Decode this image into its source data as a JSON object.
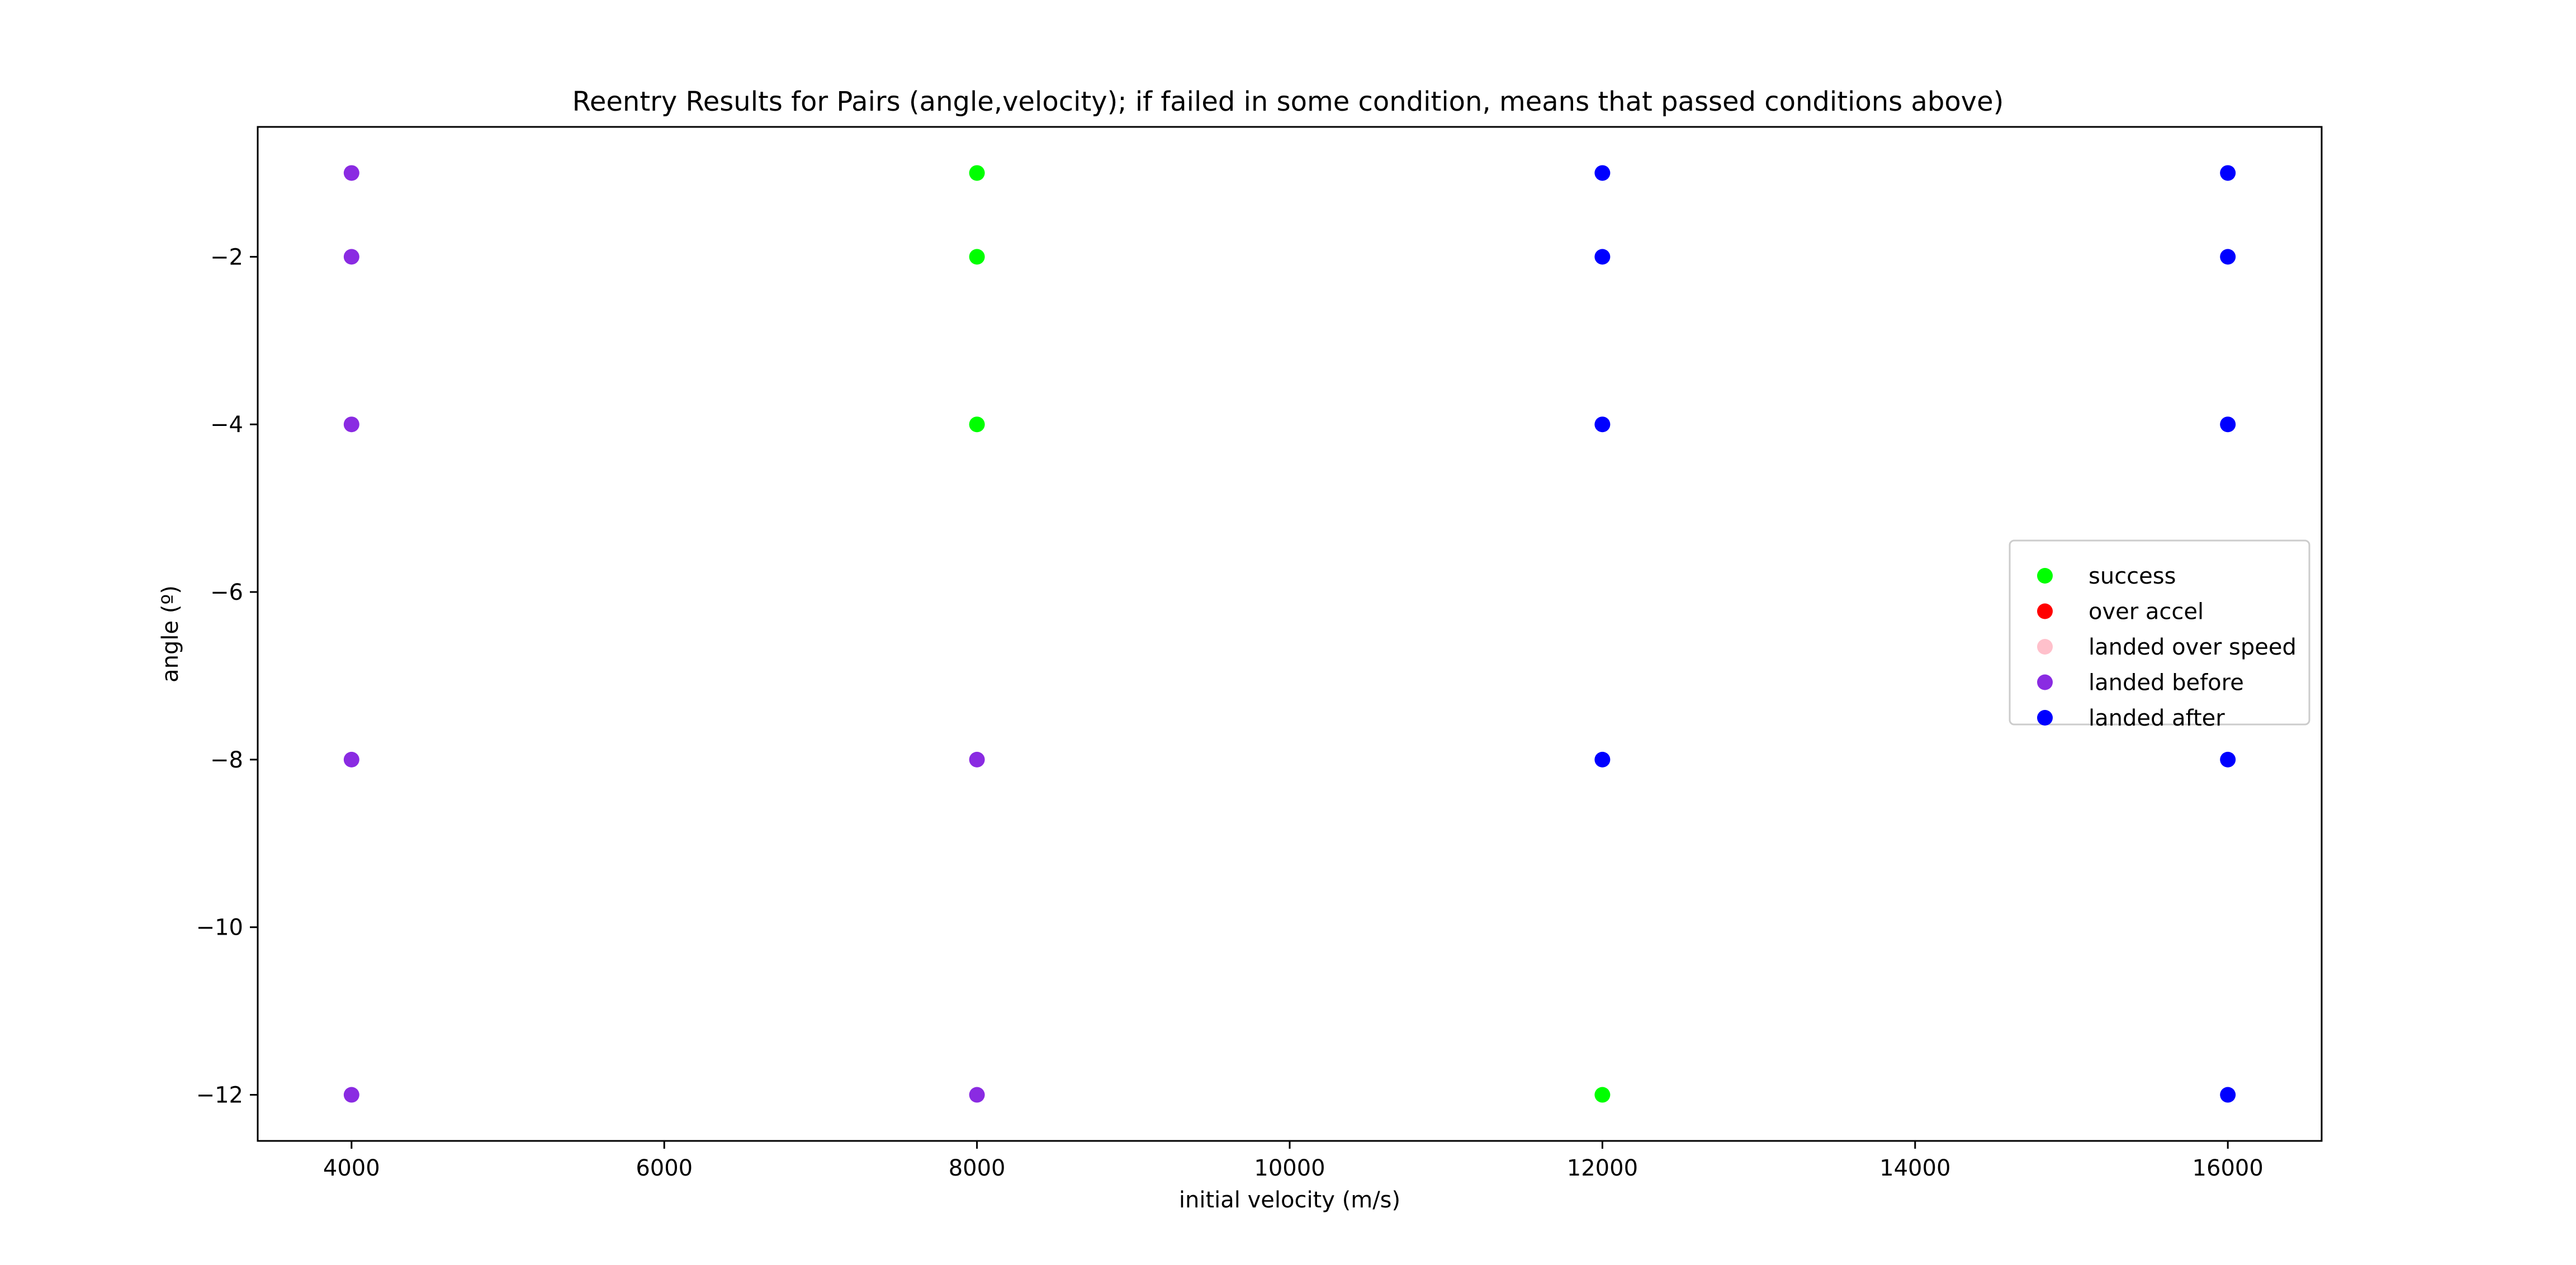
{
  "chart_data": {
    "type": "scatter",
    "title": "Reentry Results for Pairs (angle,velocity); if failed in some condition, means that passed conditions above)",
    "xlabel": "initial velocity (m/s)",
    "ylabel": "angle (º)",
    "xlim": [
      3400,
      16600
    ],
    "ylim": [
      -12.55,
      -0.45
    ],
    "xticks": [
      4000,
      6000,
      8000,
      10000,
      12000,
      14000,
      16000
    ],
    "yticks": [
      -2,
      -4,
      -6,
      -8,
      -10,
      -12
    ],
    "grid": false,
    "legend_position": "center-right",
    "series": [
      {
        "name": "success",
        "color": "#00ff00",
        "points": [
          {
            "x": 8000,
            "y": -1
          },
          {
            "x": 8000,
            "y": -2
          },
          {
            "x": 8000,
            "y": -4
          },
          {
            "x": 12000,
            "y": -12
          }
        ]
      },
      {
        "name": "over accel",
        "color": "#ff0000",
        "points": []
      },
      {
        "name": "landed over speed",
        "color": "#ffc0cb",
        "points": []
      },
      {
        "name": "landed before",
        "color": "#8a2be2",
        "points": [
          {
            "x": 4000,
            "y": -1
          },
          {
            "x": 4000,
            "y": -2
          },
          {
            "x": 4000,
            "y": -4
          },
          {
            "x": 4000,
            "y": -8
          },
          {
            "x": 4000,
            "y": -12
          },
          {
            "x": 8000,
            "y": -8
          },
          {
            "x": 8000,
            "y": -12
          }
        ]
      },
      {
        "name": "landed after",
        "color": "#0000ff",
        "points": [
          {
            "x": 12000,
            "y": -1
          },
          {
            "x": 12000,
            "y": -2
          },
          {
            "x": 12000,
            "y": -4
          },
          {
            "x": 12000,
            "y": -8
          },
          {
            "x": 16000,
            "y": -1
          },
          {
            "x": 16000,
            "y": -2
          },
          {
            "x": 16000,
            "y": -4
          },
          {
            "x": 16000,
            "y": -8
          },
          {
            "x": 16000,
            "y": -12
          }
        ]
      }
    ]
  }
}
